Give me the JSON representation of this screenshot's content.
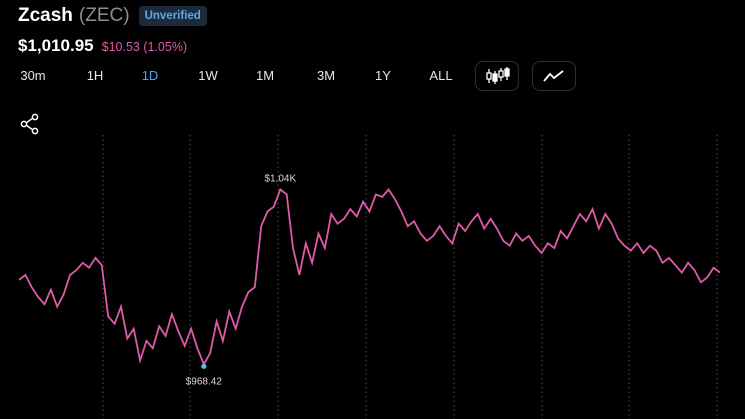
{
  "header": {
    "coin_name": "Zcash",
    "coin_symbol": "(ZEC)",
    "badge": "Unverified",
    "price": "$1,010.95",
    "change": "$10.53 (1.05%)",
    "change_color": "#e05aa8"
  },
  "ranges": [
    "30m",
    "1H",
    "1D",
    "1W",
    "1M",
    "3M",
    "1Y",
    "ALL"
  ],
  "active_range": "1D",
  "mode_buttons": [
    "candlestick-icon",
    "line-chart-icon"
  ],
  "share_icon": "share-icon",
  "colors": {
    "line": "#e05aa8",
    "accent": "#4aa3ff",
    "marker": "#4fc3f7",
    "grid": "#555"
  },
  "chart_data": {
    "type": "line",
    "series": [
      {
        "values": [
          1003,
          1005,
          1000,
          996,
          993,
          999,
          992,
          997,
          1005,
          1007,
          1010,
          1008,
          1012,
          1009,
          988,
          985,
          992,
          979,
          983,
          970,
          978,
          975,
          984,
          980,
          989,
          982,
          976,
          983,
          975,
          968.42,
          973,
          986,
          978,
          990,
          983,
          992,
          998,
          1000,
          1025,
          1031,
          1033,
          1040,
          1038,
          1016,
          1005,
          1018,
          1010,
          1022,
          1016,
          1030,
          1026,
          1028,
          1032,
          1029,
          1035,
          1031,
          1038,
          1037,
          1040,
          1036,
          1031,
          1025,
          1027,
          1022,
          1019,
          1021,
          1025,
          1021,
          1018,
          1026,
          1023,
          1027,
          1030,
          1024,
          1028,
          1024,
          1019,
          1017,
          1022,
          1019,
          1021,
          1017,
          1014,
          1018,
          1016,
          1023,
          1020,
          1025,
          1030,
          1027,
          1032,
          1024,
          1030,
          1026,
          1020,
          1017,
          1015,
          1018,
          1014,
          1017,
          1015,
          1010,
          1012,
          1009,
          1006,
          1010,
          1007,
          1002,
          1004,
          1008,
          1006
        ]
      }
    ],
    "high_label": "$1.04K",
    "low_label": "$968.42",
    "ylim": [
      962,
      1048
    ],
    "grid": "dotted vertical"
  }
}
